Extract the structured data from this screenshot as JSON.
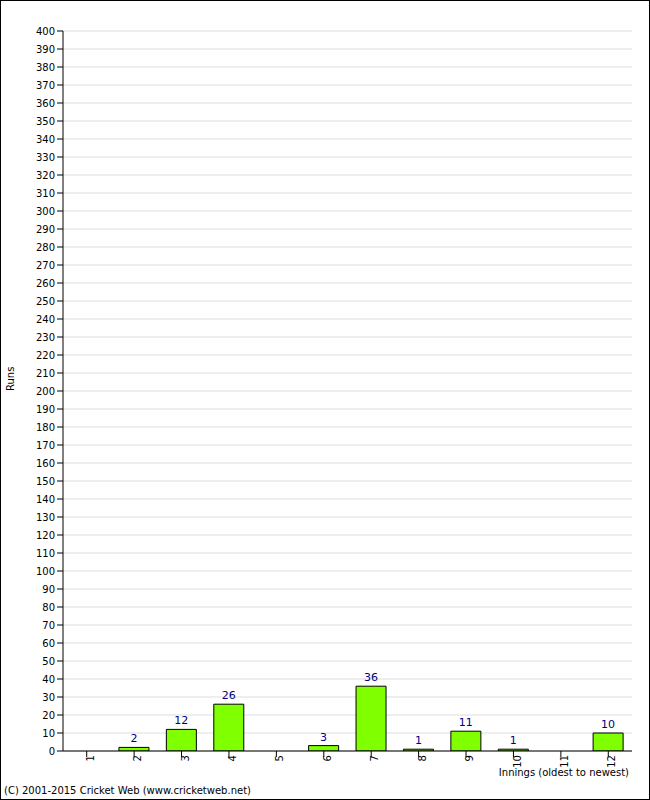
{
  "chart_data": {
    "type": "bar",
    "y_label": "Runs",
    "x_label": "Innings (oldest to newest)",
    "annotation": "(C) 2001-2015 Cricket Web (www.cricketweb.net)",
    "categories": [
      "1",
      "2",
      "3",
      "4",
      "5",
      "6",
      "7",
      "8",
      "9",
      "10",
      "11",
      "12"
    ],
    "values": [
      0,
      2,
      12,
      26,
      0,
      3,
      36,
      1,
      11,
      1,
      0,
      10
    ],
    "color": "#80ff00",
    "ylim": [
      0,
      400
    ],
    "yticks": [
      0,
      10,
      20,
      30,
      40,
      50,
      60,
      70,
      80,
      90,
      100,
      110,
      120,
      130,
      140,
      150,
      160,
      170,
      180,
      190,
      200,
      210,
      220,
      230,
      240,
      250,
      260,
      270,
      280,
      290,
      300,
      310,
      320,
      330,
      340,
      350,
      360,
      370,
      380,
      390,
      400
    ],
    "grid": true,
    "data_labels": true
  }
}
